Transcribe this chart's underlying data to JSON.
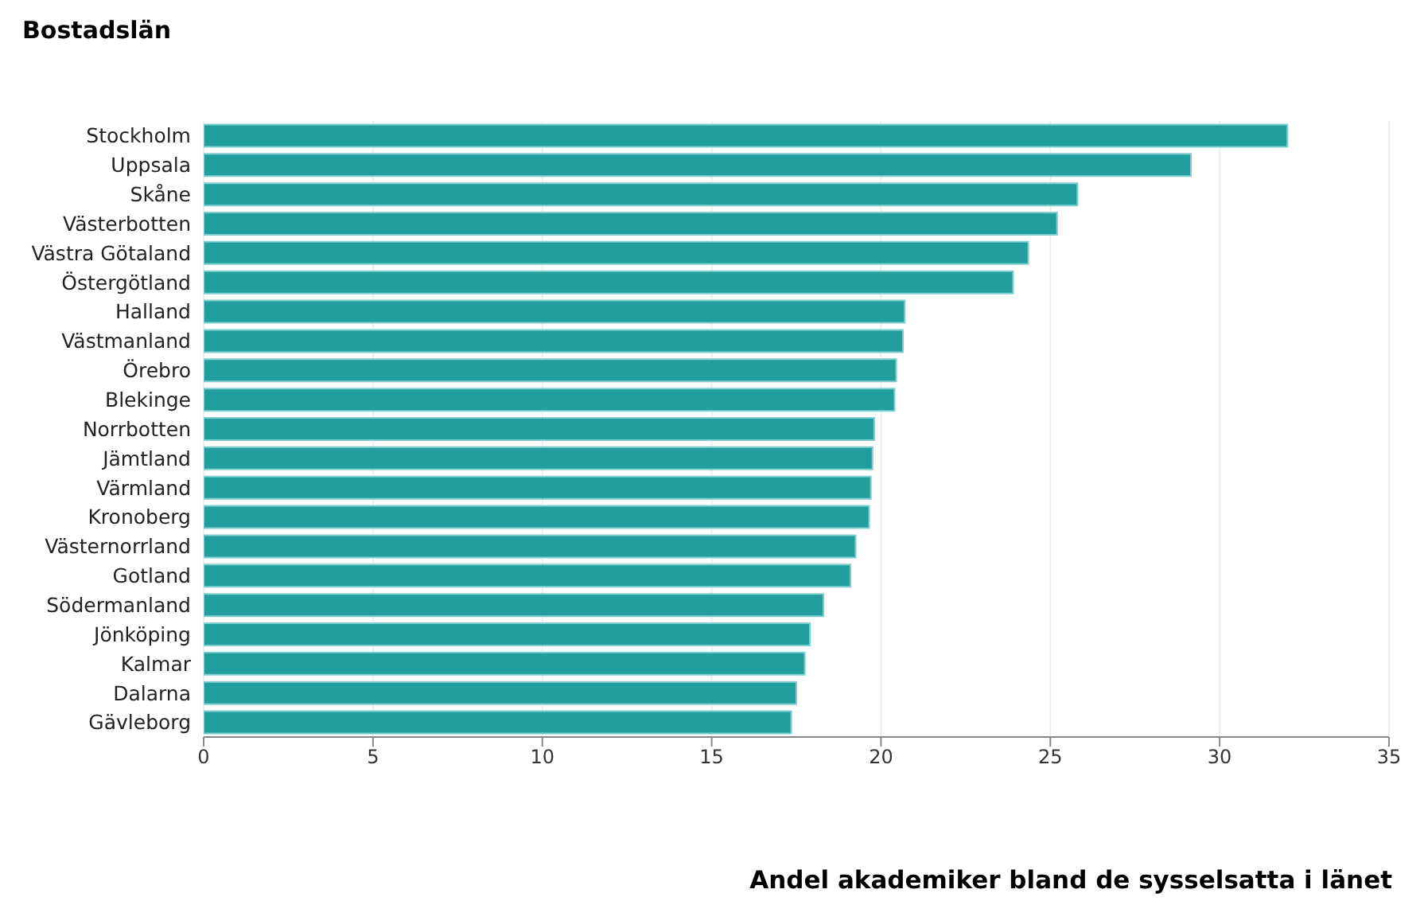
{
  "chart_data": {
    "type": "bar",
    "orientation": "horizontal",
    "title": "Bostadslän",
    "xlabel": "Andel akademiker bland de sysselsatta i länet",
    "categories": [
      "Stockholm",
      "Uppsala",
      "Skåne",
      "Västerbotten",
      "Västra Götaland",
      "Östergötland",
      "Halland",
      "Västmanland",
      "Örebro",
      "Blekinge",
      "Norrbotten",
      "Jämtland",
      "Värmland",
      "Kronoberg",
      "Västernorrland",
      "Gotland",
      "Södermanland",
      "Jönköping",
      "Kalmar",
      "Dalarna",
      "Gävleborg"
    ],
    "values": [
      32.0,
      29.15,
      25.8,
      25.2,
      24.35,
      23.9,
      20.7,
      20.65,
      20.45,
      20.4,
      19.8,
      19.75,
      19.7,
      19.65,
      19.25,
      19.1,
      18.3,
      17.9,
      17.75,
      17.5,
      17.35
    ],
    "color": "#239e9f",
    "xlim": [
      0,
      35
    ],
    "xticks": [
      0,
      5,
      10,
      15,
      20,
      25,
      30,
      35
    ],
    "grid": "x"
  }
}
